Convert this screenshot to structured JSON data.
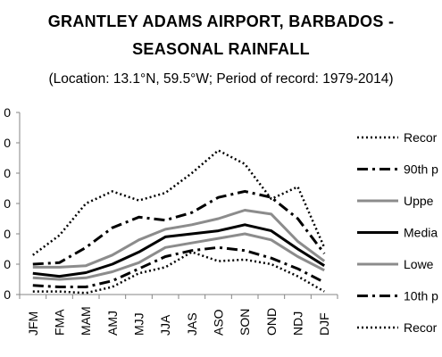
{
  "title_line1": "GRANTLEY ADAMS AIRPORT, BARBADOS -",
  "title_line2": "SEASONAL RAINFALL",
  "subtitle": "(Location: 13.1°N, 59.5°W; Period of record: 1979-2014)",
  "chart_data": {
    "type": "line",
    "categories": [
      "JFM",
      "FMA",
      "MAM",
      "AMJ",
      "MJJ",
      "JJA",
      "JAS",
      "ASO",
      "SON",
      "OND",
      "NDJ",
      "DJF"
    ],
    "ylim": [
      0,
      6
    ],
    "y_tick_labels": [
      "0",
      "0",
      "0",
      "0",
      "0",
      "0",
      "0"
    ],
    "grid": false,
    "legend_position": "right",
    "series": [
      {
        "name": "Recor",
        "style": "dotted",
        "color": "#000000",
        "values": [
          1.3,
          1.95,
          3.0,
          3.4,
          3.1,
          3.35,
          4.0,
          4.75,
          4.3,
          3.15,
          3.55,
          1.55
        ]
      },
      {
        "name": "90th p",
        "style": "dashdot",
        "color": "#000000",
        "values": [
          1.0,
          1.05,
          1.55,
          2.2,
          2.55,
          2.45,
          2.7,
          3.2,
          3.4,
          3.2,
          2.5,
          1.35
        ]
      },
      {
        "name": "Uppe",
        "style": "solid",
        "color": "#8c8c8c",
        "values": [
          0.9,
          0.9,
          0.95,
          1.3,
          1.8,
          2.15,
          2.3,
          2.5,
          2.78,
          2.65,
          1.75,
          1.1
        ]
      },
      {
        "name": "Media",
        "style": "solid",
        "color": "#000000",
        "values": [
          0.7,
          0.6,
          0.72,
          1.0,
          1.4,
          1.9,
          2.0,
          2.1,
          2.3,
          2.1,
          1.5,
          0.95
        ]
      },
      {
        "name": "Lowe",
        "style": "solid",
        "color": "#8c8c8c",
        "values": [
          0.55,
          0.5,
          0.55,
          0.75,
          1.05,
          1.55,
          1.7,
          1.85,
          2.0,
          1.8,
          1.25,
          0.8
        ]
      },
      {
        "name": "10th p",
        "style": "dashdot",
        "color": "#000000",
        "values": [
          0.3,
          0.25,
          0.25,
          0.45,
          0.85,
          1.25,
          1.45,
          1.55,
          1.45,
          1.2,
          0.85,
          0.4
        ]
      },
      {
        "name": "Recor",
        "style": "dotted",
        "color": "#000000",
        "values": [
          0.1,
          0.1,
          0.05,
          0.25,
          0.7,
          0.9,
          1.4,
          1.1,
          1.15,
          1.0,
          0.6,
          0.1
        ]
      }
    ]
  }
}
